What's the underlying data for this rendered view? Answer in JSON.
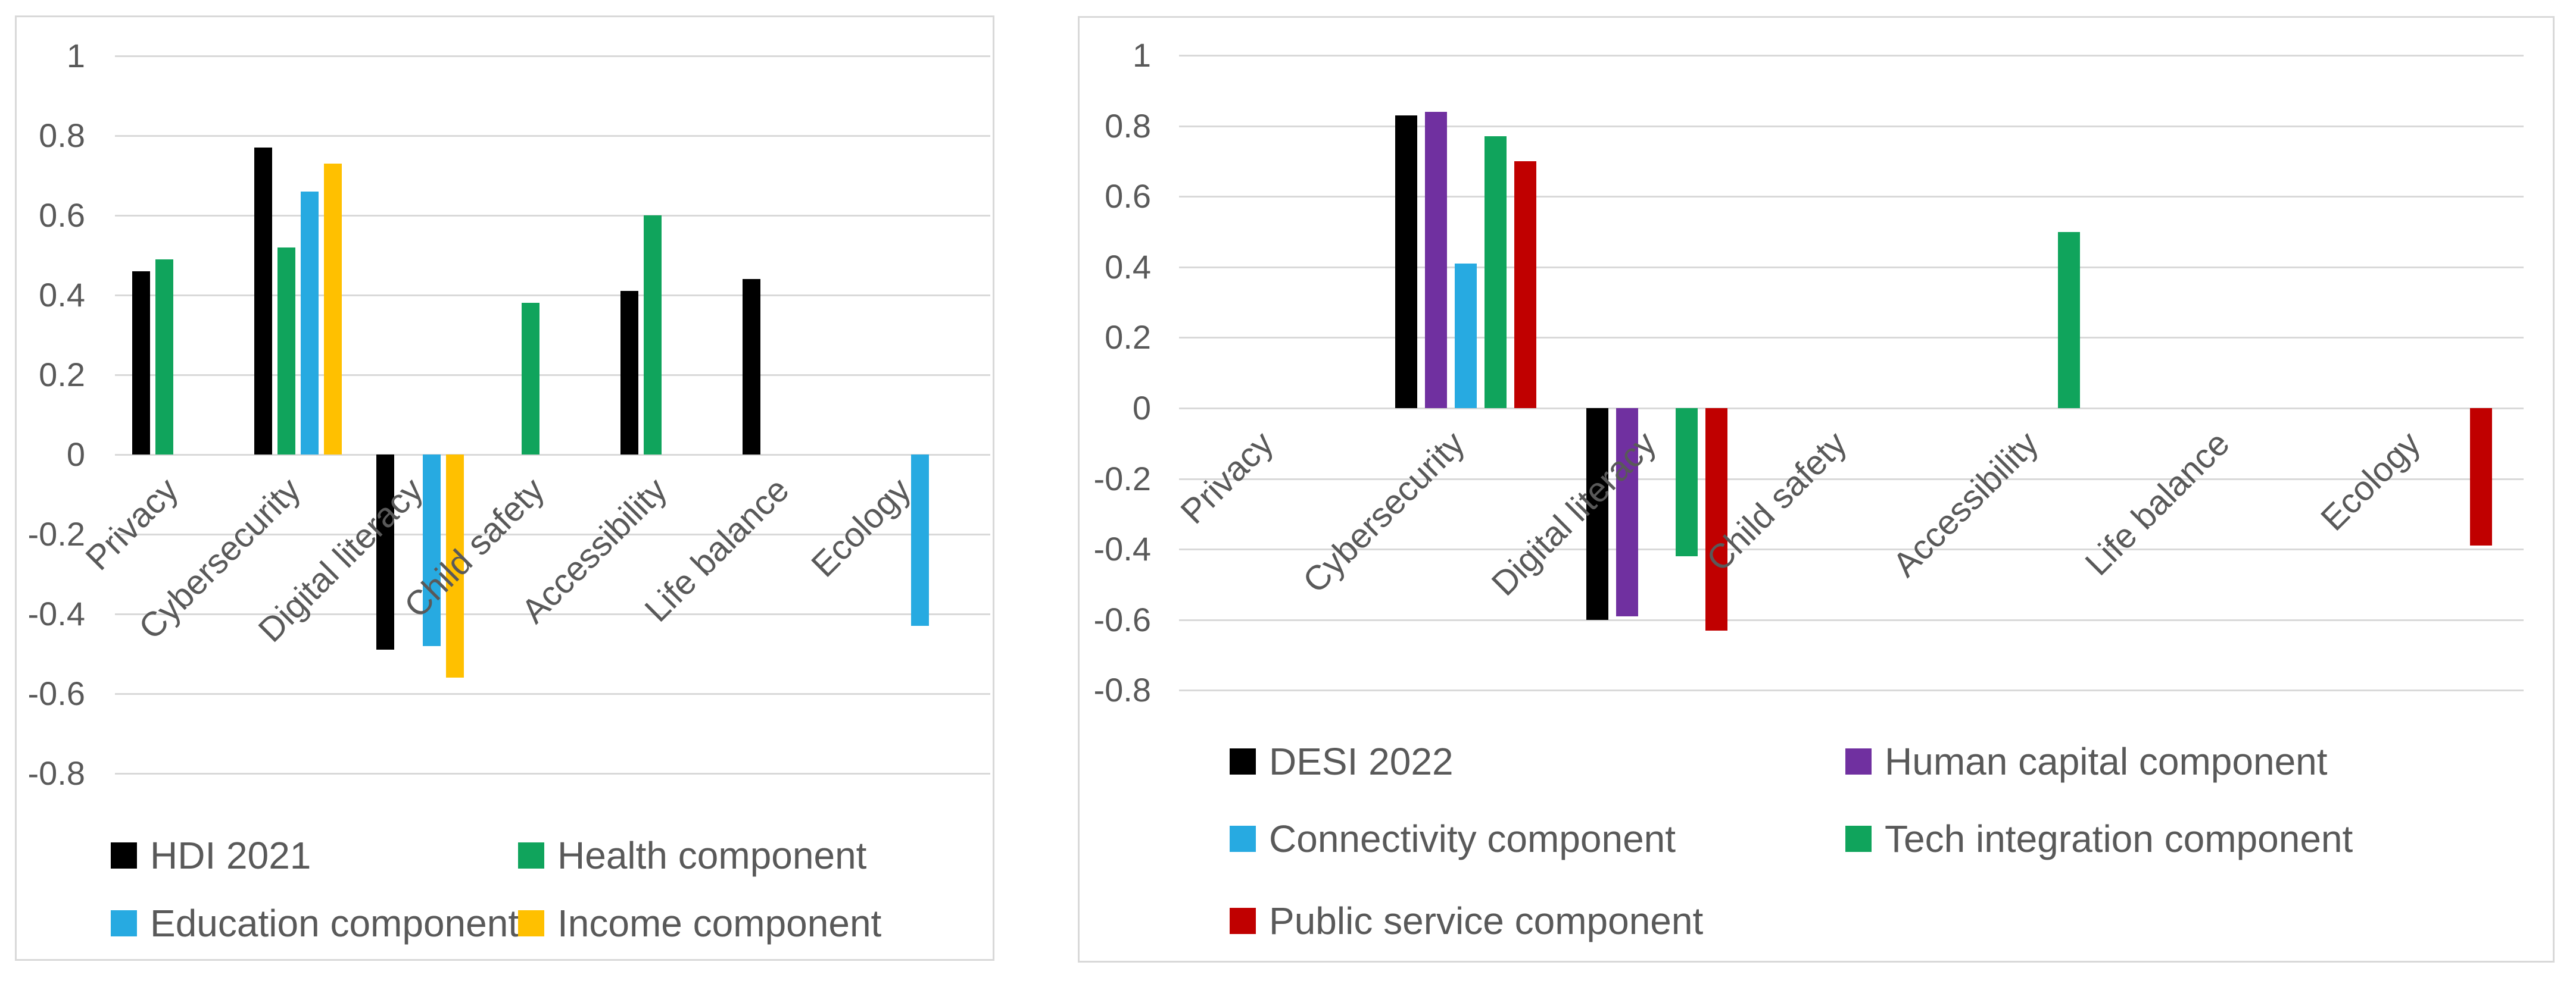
{
  "chart_data": [
    {
      "type": "bar",
      "title": "",
      "xlabel": "",
      "ylabel": "",
      "ylim": [
        -0.8,
        1
      ],
      "grid": true,
      "legend_position": "bottom",
      "yticks": [
        "1",
        "0.8",
        "0.6",
        "0.4",
        "0.2",
        "0",
        "-0.2",
        "-0.4",
        "-0.6",
        "-0.8"
      ],
      "ytick_values": [
        1,
        0.8,
        0.6,
        0.4,
        0.2,
        0,
        -0.2,
        -0.4,
        -0.6,
        -0.8
      ],
      "categories": [
        "Privacy",
        "Cybersecurity",
        "Digital literacy",
        "Child safety",
        "Accessibility",
        "Life balance",
        "Ecology"
      ],
      "series": [
        {
          "name": "HDI 2021",
          "color": "#000000",
          "values": [
            0.46,
            0.77,
            -0.49,
            null,
            0.41,
            0.44,
            null
          ]
        },
        {
          "name": "Health component",
          "color": "#10A45C",
          "values": [
            0.49,
            0.52,
            null,
            0.38,
            0.6,
            null,
            null
          ]
        },
        {
          "name": "Education component",
          "color": "#27AAE1",
          "values": [
            null,
            0.66,
            -0.48,
            null,
            null,
            null,
            -0.43
          ]
        },
        {
          "name": "Income component",
          "color": "#FFC000",
          "values": [
            null,
            0.73,
            -0.56,
            null,
            null,
            null,
            null
          ]
        }
      ]
    },
    {
      "type": "bar",
      "title": "",
      "xlabel": "",
      "ylabel": "",
      "ylim": [
        -0.8,
        1
      ],
      "grid": true,
      "legend_position": "bottom",
      "yticks": [
        "1",
        "0.8",
        "0.6",
        "0.4",
        "0.2",
        "0",
        "-0.2",
        "-0.4",
        "-0.6",
        "-0.8"
      ],
      "ytick_values": [
        1,
        0.8,
        0.6,
        0.4,
        0.2,
        0,
        -0.2,
        -0.4,
        -0.6,
        -0.8
      ],
      "categories": [
        "Privacy",
        "Cybersecurity",
        "Digital literacy",
        "Child safety",
        "Accessibility",
        "Life balance",
        "Ecology"
      ],
      "series": [
        {
          "name": "DESI 2022",
          "color": "#000000",
          "values": [
            null,
            0.83,
            -0.6,
            null,
            null,
            null,
            null
          ]
        },
        {
          "name": "Human capital component",
          "color": "#7030A0",
          "values": [
            null,
            0.84,
            -0.59,
            null,
            null,
            null,
            null
          ]
        },
        {
          "name": "Connectivity component",
          "color": "#27AAE1",
          "values": [
            null,
            0.41,
            null,
            null,
            null,
            null,
            null
          ]
        },
        {
          "name": "Tech integration component",
          "color": "#10A45C",
          "values": [
            null,
            0.77,
            -0.42,
            null,
            0.5,
            null,
            null
          ]
        },
        {
          "name": "Public service component",
          "color": "#C00000",
          "values": [
            null,
            0.7,
            -0.63,
            null,
            null,
            null,
            -0.39
          ]
        }
      ]
    }
  ]
}
